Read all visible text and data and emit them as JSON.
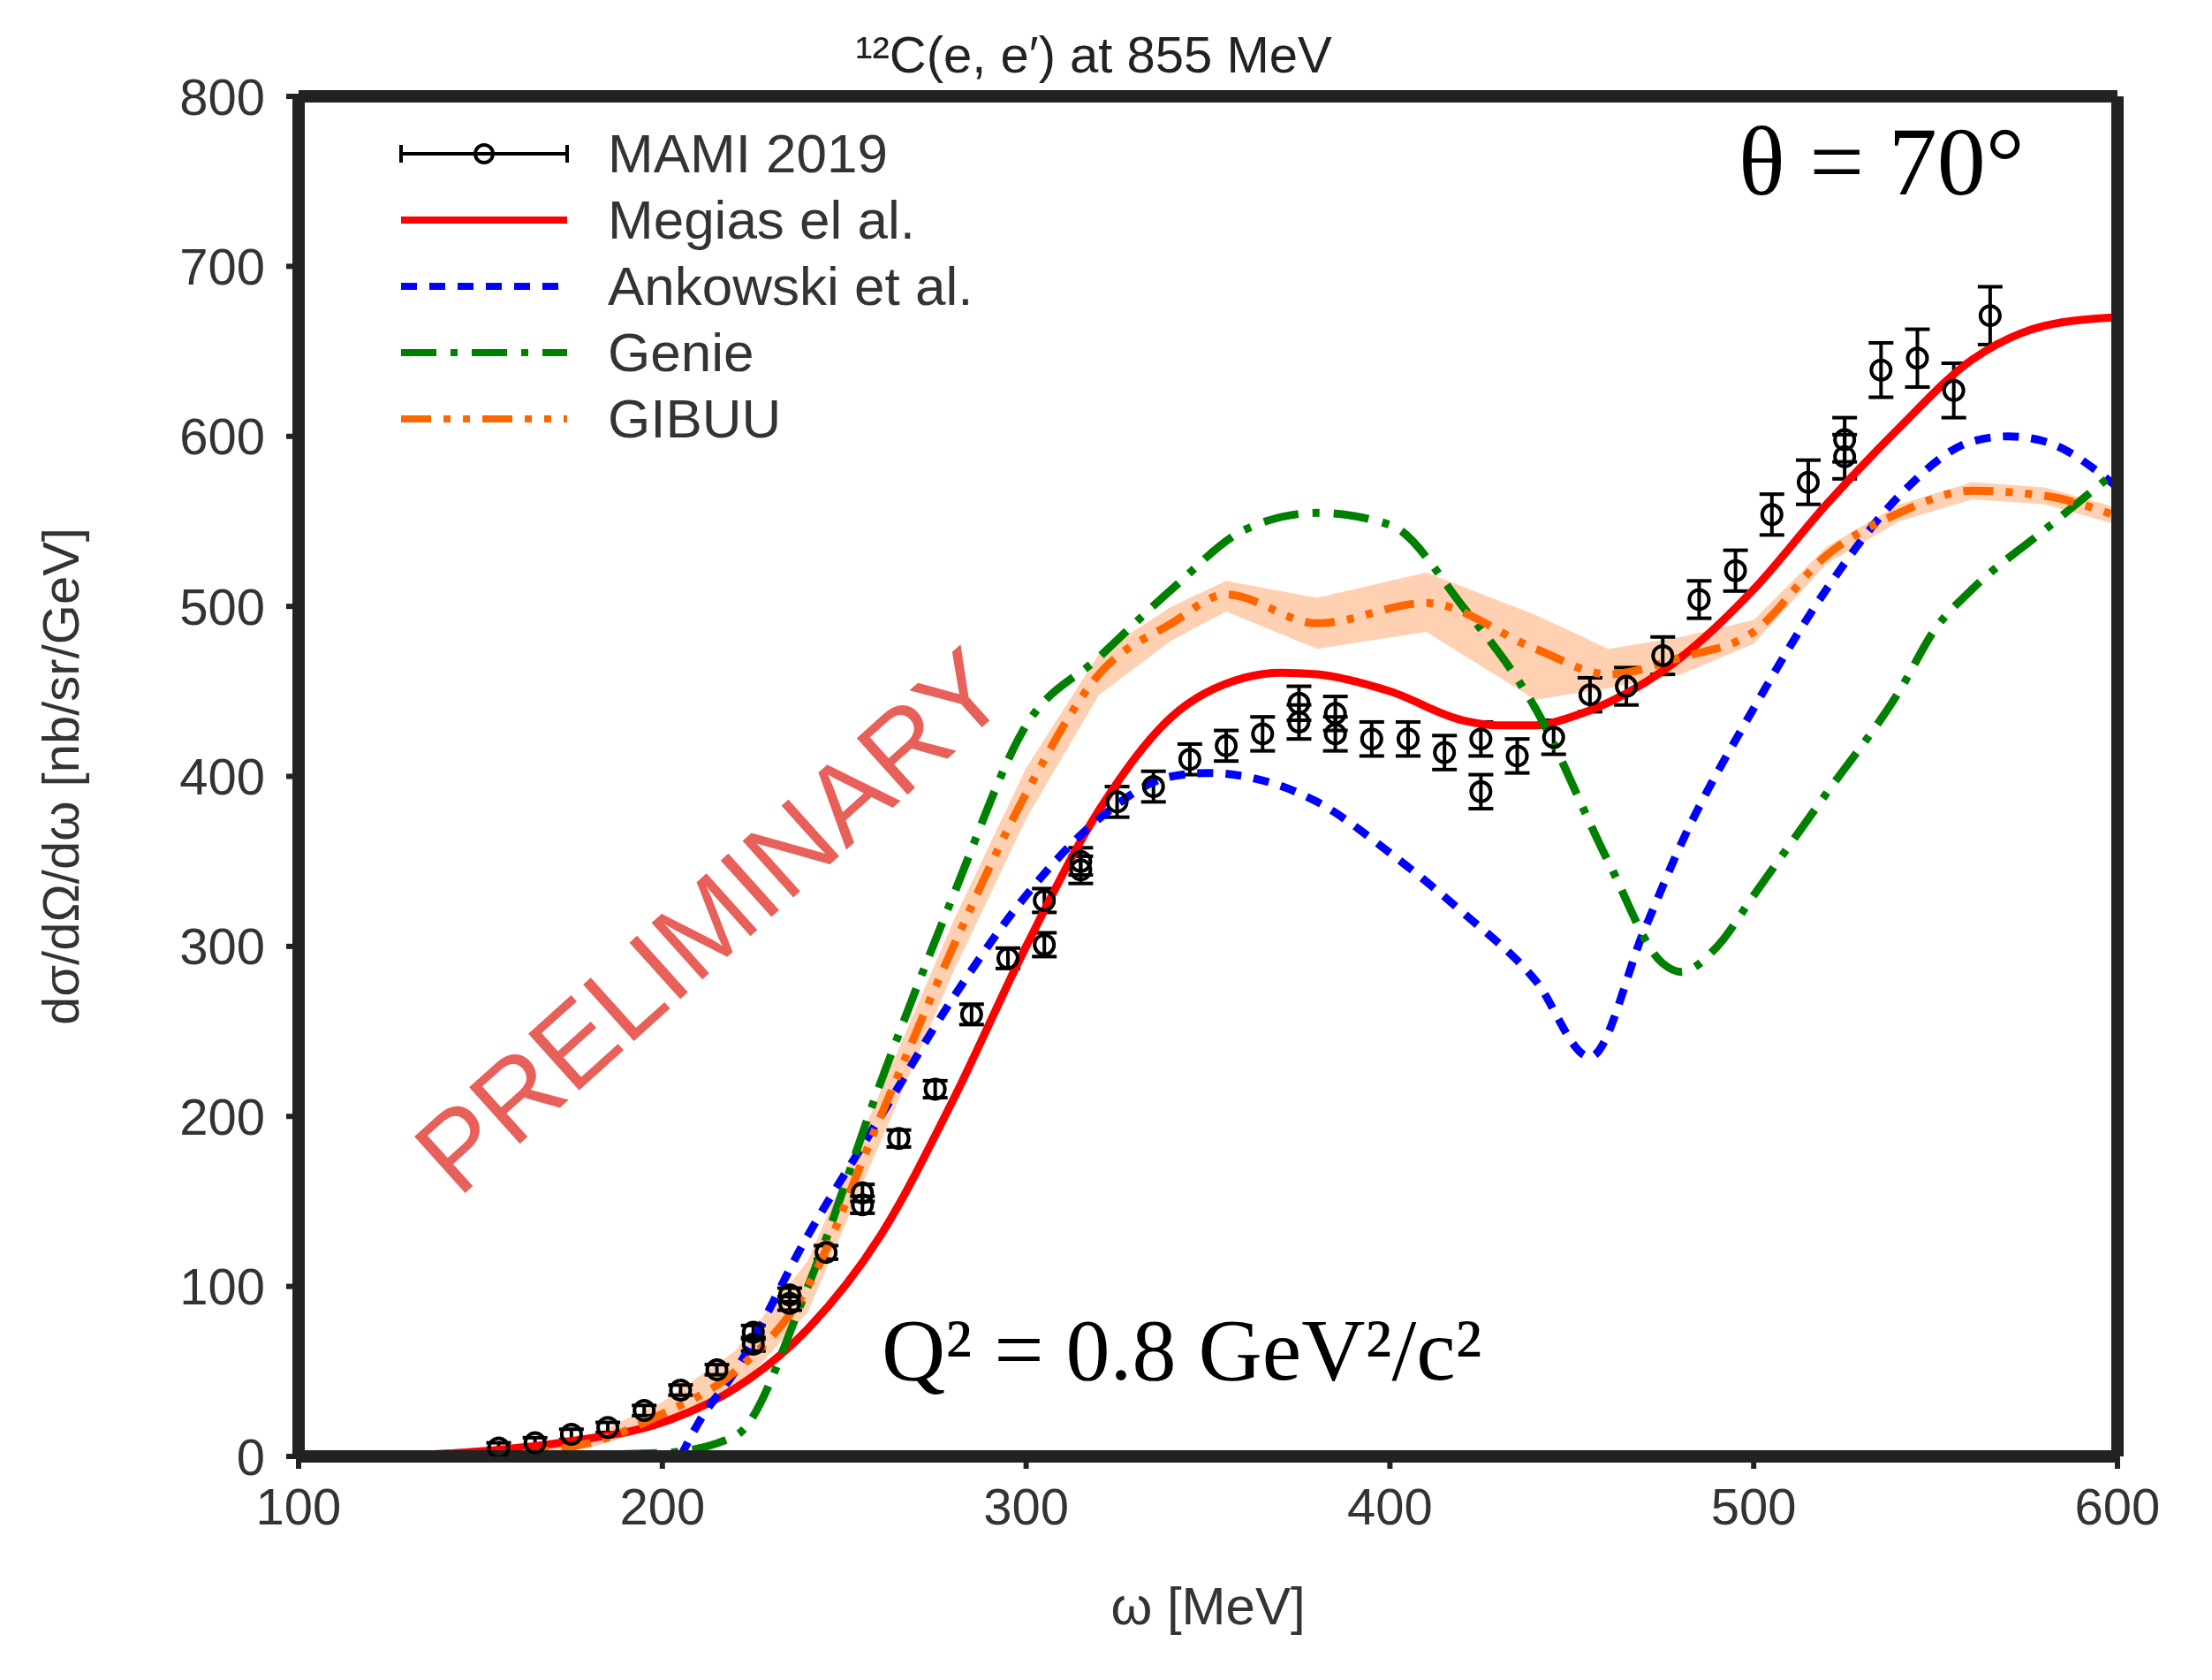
{
  "chart_data": {
    "type": "line",
    "title": "¹²C(e, e′) at 855 MeV",
    "xlabel": "ω    [MeV]",
    "ylabel": "dσ/dΩ/dω    [nb/sr/GeV]",
    "annotations": [
      "θ = 70°",
      "Q² = 0.8 GeV²/c²",
      "PRELIMINARY"
    ],
    "xlim": [
      100,
      600
    ],
    "xticks": [
      100,
      200,
      300,
      400,
      500,
      600
    ],
    "ylim": [
      0,
      800
    ],
    "yticks": [
      0,
      100,
      200,
      300,
      400,
      500,
      600,
      700,
      800
    ],
    "grid": false,
    "legend": "top left",
    "series": [
      {
        "name": "MAMI 2019",
        "type": "scatter",
        "color": "#000000",
        "marker": "circle",
        "x": [
          155,
          165,
          175,
          185,
          195,
          205,
          215,
          225,
          225,
          235,
          235,
          245,
          255,
          255,
          265,
          275,
          285,
          295,
          305,
          305,
          315,
          315,
          325,
          335,
          345,
          355,
          365,
          375,
          375,
          385,
          385,
          395,
          405,
          415,
          425,
          425,
          435,
          445,
          455,
          465,
          475,
          485,
          495,
          505,
          515,
          525,
          525,
          535,
          545,
          555,
          565
        ],
        "values": [
          5,
          8,
          13,
          17,
          27,
          39,
          51,
          66,
          73,
          90,
          95,
          120,
          148,
          155,
          187,
          216,
          260,
          293,
          301,
          327,
          345,
          350,
          385,
          394,
          410,
          418,
          425,
          432,
          443,
          425,
          437,
          422,
          422,
          414,
          422,
          391,
          412,
          423,
          448,
          453,
          471,
          504,
          521,
          554,
          573,
          588,
          598,
          639,
          646,
          627,
          671
        ],
        "errors": [
          3,
          3,
          3,
          3,
          3,
          3,
          3,
          4,
          4,
          4,
          4,
          4,
          5,
          5,
          5,
          5,
          6,
          6,
          7,
          7,
          8,
          8,
          9,
          9,
          9,
          9,
          10,
          10,
          10,
          10,
          10,
          10,
          10,
          10,
          10,
          10,
          10,
          10,
          10,
          11,
          11,
          11,
          12,
          12,
          13,
          13,
          13,
          16,
          17,
          16,
          17
        ]
      },
      {
        "name": "Megias el al.",
        "color": "#ff0000",
        "line_style": "solid",
        "x": [
          125,
          150,
          175,
          200,
          220,
          240,
          260,
          280,
          300,
          320,
          340,
          360,
          370,
          380,
          400,
          420,
          430,
          440,
          450,
          470,
          480,
          500,
          520,
          540,
          560,
          580,
          600
        ],
        "values": [
          0,
          3,
          9,
          20,
          40,
          75,
          130,
          210,
          300,
          380,
          435,
          458,
          461,
          460,
          450,
          433,
          430,
          430,
          435,
          455,
          470,
          510,
          560,
          605,
          645,
          665,
          670
        ]
      },
      {
        "name": "Ankowski et al.",
        "color": "#0000ff",
        "line_style": "dashed",
        "x": [
          205,
          210,
          220,
          240,
          260,
          280,
          300,
          320,
          340,
          350,
          360,
          380,
          400,
          420,
          440,
          455,
          470,
          480,
          500,
          520,
          540,
          560,
          570,
          580,
          600
        ],
        "values": [
          0,
          20,
          50,
          130,
          200,
          270,
          330,
          375,
          400,
          402,
          400,
          385,
          355,
          320,
          280,
          235,
          310,
          360,
          440,
          510,
          565,
          597,
          600,
          597,
          570
        ]
      },
      {
        "name": "Genie",
        "color": "#008000",
        "line_style": "dashdot",
        "x": [
          150,
          200,
          220,
          240,
          260,
          280,
          300,
          320,
          340,
          360,
          380,
          400,
          420,
          440,
          460,
          475,
          480,
          490,
          500,
          520,
          540,
          550,
          560,
          580,
          600
        ],
        "values": [
          0,
          2,
          12,
          100,
          220,
          330,
          430,
          470,
          510,
          545,
          555,
          548,
          500,
          440,
          350,
          290,
          285,
          300,
          330,
          390,
          450,
          487,
          510,
          545,
          580
        ]
      },
      {
        "name": "GIBUU",
        "color": "#ff6600",
        "line_style": "dashdotdot",
        "x": [
          150,
          180,
          200,
          220,
          240,
          260,
          280,
          300,
          320,
          340,
          355,
          380,
          410,
          440,
          460,
          480,
          500,
          520,
          540,
          560,
          580,
          600
        ],
        "values": [
          0,
          8,
          25,
          50,
          100,
          200,
          300,
          390,
          460,
          490,
          507,
          490,
          502,
          475,
          460,
          470,
          485,
          530,
          555,
          568,
          565,
          553
        ],
        "lower": [
          0,
          5,
          18,
          38,
          85,
          185,
          285,
          375,
          448,
          480,
          497,
          475,
          485,
          445,
          452,
          460,
          478,
          525,
          550,
          563,
          560,
          548
        ],
        "upper": [
          0,
          12,
          32,
          62,
          115,
          215,
          315,
          405,
          472,
          500,
          515,
          505,
          520,
          495,
          475,
          482,
          492,
          535,
          560,
          573,
          570,
          558
        ]
      }
    ]
  }
}
